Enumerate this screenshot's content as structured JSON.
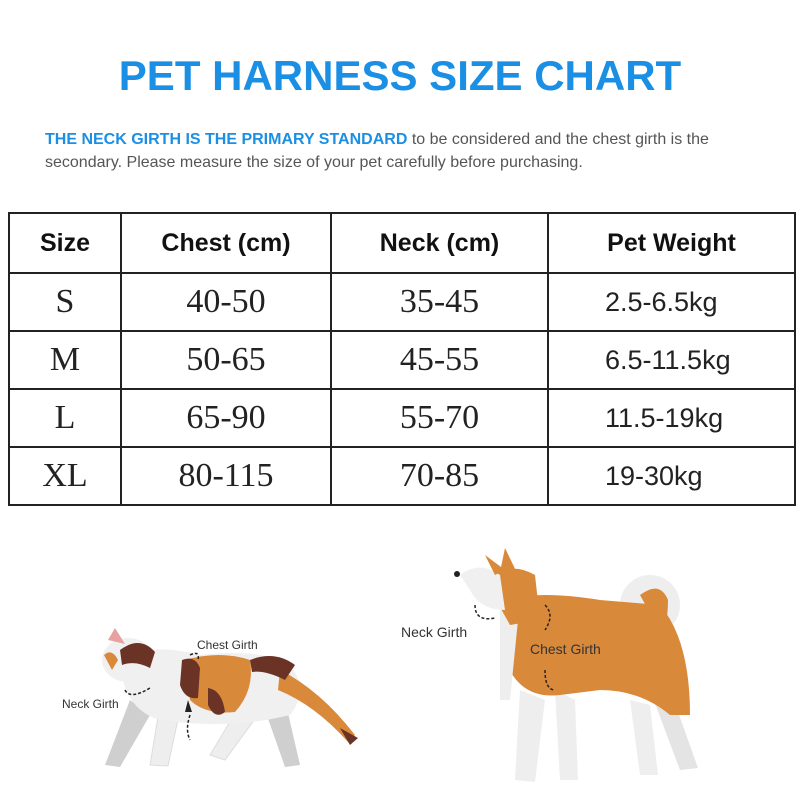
{
  "title": "PET HARNESS SIZE CHART",
  "intro": {
    "highlight": "THE NECK GIRTH IS THE PRIMARY STANDARD",
    "rest": " to be considered and the chest girth is the secondary. Please measure the size of your pet carefully before purchasing."
  },
  "table": {
    "headers": [
      "Size",
      "Chest (cm)",
      "Neck (cm)",
      "Pet Weight"
    ],
    "rows": [
      [
        "S",
        "40-50",
        "35-45",
        "2.5-6.5kg"
      ],
      [
        "M",
        "50-65",
        "45-55",
        "6.5-11.5kg"
      ],
      [
        "L",
        "65-90",
        "55-70",
        "11.5-19kg"
      ],
      [
        "XL",
        "80-115",
        "70-85",
        "19-30kg"
      ]
    ]
  },
  "illustrations": {
    "cat": {
      "neck_label": "Neck  Girth",
      "chest_label": "Chest Girth"
    },
    "dog": {
      "neck_label": "Neck  Girth",
      "chest_label": "Chest Girth"
    }
  },
  "colors": {
    "accent": "#1b8fe3",
    "fur_orange": "#d9893a",
    "fur_brown": "#6b3326"
  }
}
